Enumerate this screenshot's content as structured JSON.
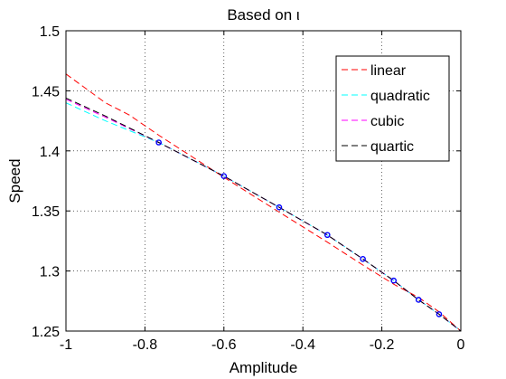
{
  "chart_data": {
    "type": "line",
    "title": "Based on ι",
    "xlabel": "Amplitude",
    "ylabel": "Speed",
    "xlim": [
      -1,
      0
    ],
    "ylim": [
      1.25,
      1.5
    ],
    "xticks": [
      -1,
      -0.8,
      -0.6,
      -0.4,
      -0.2,
      0
    ],
    "xtick_labels": [
      "-1",
      "-0.8",
      "-0.6",
      "-0.4",
      "-0.2",
      "0"
    ],
    "yticks": [
      1.25,
      1.3,
      1.35,
      1.4,
      1.45,
      1.5
    ],
    "ytick_labels": [
      "1.25",
      "1.3",
      "1.35",
      "1.4",
      "1.45",
      "1.5"
    ],
    "grid": true,
    "legend_position": "top-right",
    "series": [
      {
        "name": "linear",
        "color": "#ff0000",
        "x": [
          -1,
          -0.9,
          -0.84,
          -0.765,
          -0.6,
          -0.46,
          -0.338,
          -0.248,
          -0.17,
          -0.107,
          -0.055,
          0
        ],
        "y": [
          1.464,
          1.44,
          1.43,
          1.413,
          1.378,
          1.349,
          1.324,
          1.305,
          1.289,
          1.278,
          1.266,
          1.25
        ]
      },
      {
        "name": "quadratic",
        "color": "#00ffff",
        "x": [
          -1,
          -0.9,
          -0.765,
          -0.6,
          -0.46,
          -0.338,
          -0.248,
          -0.17,
          -0.107,
          -0.055,
          0
        ],
        "y": [
          1.44,
          1.425,
          1.407,
          1.379,
          1.353,
          1.33,
          1.31,
          1.292,
          1.276,
          1.264,
          1.25
        ]
      },
      {
        "name": "cubic",
        "color": "#ff00ff",
        "x": [
          -1,
          -0.9,
          -0.765,
          -0.6,
          -0.46,
          -0.338,
          -0.248,
          -0.17,
          -0.107,
          -0.055,
          0
        ],
        "y": [
          1.443,
          1.428,
          1.407,
          1.379,
          1.353,
          1.33,
          1.31,
          1.292,
          1.276,
          1.264,
          1.25
        ]
      },
      {
        "name": "quartic",
        "color": "#000000",
        "x": [
          -1,
          -0.9,
          -0.765,
          -0.6,
          -0.46,
          -0.338,
          -0.248,
          -0.17,
          -0.107,
          -0.055,
          0
        ],
        "y": [
          1.444,
          1.429,
          1.407,
          1.379,
          1.353,
          1.33,
          1.31,
          1.292,
          1.276,
          1.264,
          1.25
        ]
      }
    ],
    "markers": {
      "color": "#0000ff",
      "x": [
        -0.765,
        -0.6,
        -0.46,
        -0.338,
        -0.248,
        -0.17,
        -0.107,
        -0.055
      ],
      "y": [
        1.407,
        1.379,
        1.353,
        1.33,
        1.31,
        1.292,
        1.276,
        1.264
      ]
    }
  }
}
